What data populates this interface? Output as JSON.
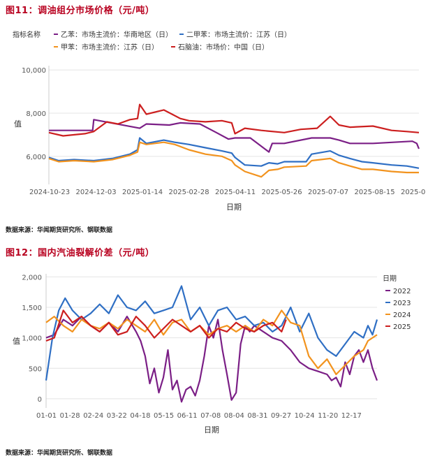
{
  "figures": [
    {
      "title": "图11：调油组分市场价格（元/吨）",
      "source": "数据来源：华闻期货研究所、钢联数据"
    },
    {
      "title": "图12：国内汽油裂解价差（元/吨）",
      "source": "数据来源：华闻期货研究所、钢联数据"
    }
  ],
  "chart_data": [
    {
      "type": "line",
      "xlabel": "日期",
      "ylabel": "值",
      "legend_title": "指标名称",
      "legend_position": "top",
      "x_ticks": [
        "2024-10-23",
        "2024-12-03",
        "2025-01-14",
        "2025-02-28",
        "2025-04-11",
        "2025-05-26",
        "2025-07-07",
        "2025-08-15",
        "2025-0"
      ],
      "y_ticks": [
        "6,000",
        "8,000",
        "10,000"
      ],
      "ylim": [
        4700,
        10200
      ],
      "grid": "horizontal",
      "x_date_range": [
        "2024-10-23",
        "2025-09-26"
      ],
      "series": [
        {
          "name": "乙苯：市场主流价：华南地区（日）",
          "color": "#7b1f86",
          "x": [
            "2024-10-23",
            "2024-12-02",
            "2024-12-03",
            "2025-01-14",
            "2025-01-20",
            "2025-02-10",
            "2025-02-20",
            "2025-03-10",
            "2025-03-25",
            "2025-04-05",
            "2025-04-11",
            "2025-04-25",
            "2025-05-12",
            "2025-05-15",
            "2025-05-26",
            "2025-06-20",
            "2025-07-07",
            "2025-07-15",
            "2025-07-25",
            "2025-08-15",
            "2025-09-20",
            "2025-09-24",
            "2025-09-26"
          ],
          "y": [
            7200,
            7200,
            7700,
            7300,
            7500,
            7450,
            7550,
            7500,
            7100,
            6800,
            6850,
            6850,
            6200,
            6600,
            6600,
            6850,
            6850,
            6750,
            6600,
            6600,
            6700,
            6600,
            6350
          ]
        },
        {
          "name": "二甲苯：市场主流价：江苏（日）",
          "color": "#2f6fc4",
          "x": [
            "2024-10-23",
            "2024-11-01",
            "2024-11-15",
            "2024-12-03",
            "2024-12-20",
            "2025-01-05",
            "2025-01-12",
            "2025-01-14",
            "2025-01-20",
            "2025-02-05",
            "2025-02-15",
            "2025-02-28",
            "2025-03-15",
            "2025-03-30",
            "2025-04-08",
            "2025-04-11",
            "2025-04-20",
            "2025-05-05",
            "2025-05-12",
            "2025-05-20",
            "2025-05-26",
            "2025-06-15",
            "2025-06-20",
            "2025-07-07",
            "2025-07-15",
            "2025-07-25",
            "2025-08-05",
            "2025-08-15",
            "2025-09-01",
            "2025-09-15",
            "2025-09-26"
          ],
          "y": [
            5950,
            5800,
            5850,
            5800,
            5900,
            6100,
            6300,
            6850,
            6600,
            6750,
            6650,
            6550,
            6400,
            6250,
            6150,
            5950,
            5600,
            5550,
            5700,
            5650,
            5750,
            5750,
            6100,
            6250,
            6050,
            5900,
            5750,
            5700,
            5600,
            5550,
            5450
          ]
        },
        {
          "name": "甲苯：市场主流价：江苏（日）",
          "color": "#f2931e",
          "x": [
            "2024-10-23",
            "2024-11-01",
            "2024-11-15",
            "2024-12-03",
            "2024-12-20",
            "2025-01-05",
            "2025-01-12",
            "2025-01-14",
            "2025-01-20",
            "2025-02-05",
            "2025-02-15",
            "2025-02-28",
            "2025-03-15",
            "2025-03-30",
            "2025-04-08",
            "2025-04-11",
            "2025-04-20",
            "2025-05-05",
            "2025-05-12",
            "2025-05-20",
            "2025-05-26",
            "2025-06-15",
            "2025-06-20",
            "2025-07-07",
            "2025-07-15",
            "2025-07-25",
            "2025-08-05",
            "2025-08-15",
            "2025-09-01",
            "2025-09-15",
            "2025-09-26"
          ],
          "y": [
            5900,
            5750,
            5800,
            5750,
            5850,
            6050,
            6200,
            6650,
            6550,
            6650,
            6550,
            6300,
            6100,
            6000,
            5800,
            5600,
            5300,
            5050,
            5350,
            5400,
            5500,
            5550,
            5800,
            5900,
            5700,
            5550,
            5400,
            5400,
            5300,
            5250,
            5250
          ]
        },
        {
          "name": "石脑油：市场价：中国（日）",
          "color": "#cc1f1f",
          "x": [
            "2024-10-23",
            "2024-11-05",
            "2024-11-25",
            "2024-12-03",
            "2024-12-15",
            "2024-12-25",
            "2025-01-05",
            "2025-01-12",
            "2025-01-14",
            "2025-01-20",
            "2025-02-05",
            "2025-02-20",
            "2025-02-28",
            "2025-03-15",
            "2025-03-30",
            "2025-04-08",
            "2025-04-11",
            "2025-04-20",
            "2025-05-05",
            "2025-05-26",
            "2025-06-10",
            "2025-06-25",
            "2025-07-07",
            "2025-07-15",
            "2025-07-25",
            "2025-08-15",
            "2025-09-01",
            "2025-09-15",
            "2025-09-26"
          ],
          "y": [
            7100,
            6950,
            7050,
            7150,
            7600,
            7500,
            7700,
            7750,
            8400,
            7950,
            8150,
            7750,
            7650,
            7600,
            7650,
            7550,
            7050,
            7300,
            7200,
            7100,
            7250,
            7300,
            7850,
            7450,
            7350,
            7400,
            7200,
            7150,
            7100
          ]
        }
      ]
    },
    {
      "type": "line",
      "xlabel": "日期",
      "ylabel": "值",
      "legend_title": "日期",
      "legend_position": "right",
      "x_ticks": [
        "01-01",
        "01-28",
        "02-24",
        "03-22",
        "04-18",
        "05-15",
        "06-11",
        "07-08",
        "08-04",
        "08-31",
        "09-27",
        "10-24",
        "11-20",
        "12-17"
      ],
      "y_ticks": [
        "0",
        "500",
        "1,000",
        "1,500",
        "2,000"
      ],
      "ylim": [
        -150,
        2050
      ],
      "grid": "horizontal",
      "series": [
        {
          "name": "2022",
          "color": "#7b1f86",
          "x": [
            1,
            10,
            20,
            30,
            40,
            50,
            60,
            70,
            80,
            90,
            100,
            105,
            110,
            115,
            120,
            125,
            130,
            135,
            140,
            145,
            150,
            155,
            160,
            165,
            170,
            175,
            180,
            185,
            190,
            195,
            200,
            205,
            210,
            215,
            220,
            225,
            230,
            240,
            250,
            260,
            270,
            280,
            290,
            300,
            310,
            315,
            320,
            325,
            330,
            335,
            340,
            345,
            350,
            355,
            360,
            365
          ],
          "y": [
            1000,
            1050,
            1300,
            1200,
            1350,
            1200,
            1100,
            1250,
            1100,
            1350,
            1100,
            950,
            700,
            250,
            500,
            100,
            350,
            800,
            150,
            300,
            -50,
            150,
            200,
            50,
            300,
            700,
            1200,
            1000,
            1300,
            800,
            400,
            -20,
            100,
            900,
            1200,
            1100,
            1200,
            1100,
            1000,
            950,
            800,
            600,
            500,
            450,
            400,
            300,
            350,
            200,
            600,
            400,
            700,
            800,
            600,
            800,
            500,
            300
          ]
        },
        {
          "name": "2023",
          "color": "#2f6fc4",
          "x": [
            1,
            8,
            15,
            22,
            30,
            40,
            50,
            60,
            70,
            80,
            90,
            100,
            110,
            120,
            130,
            140,
            150,
            160,
            170,
            180,
            190,
            200,
            210,
            220,
            230,
            240,
            250,
            260,
            270,
            280,
            290,
            300,
            310,
            320,
            330,
            340,
            350,
            355,
            360,
            365
          ],
          "y": [
            300,
            1000,
            1450,
            1650,
            1450,
            1300,
            1400,
            1550,
            1400,
            1700,
            1500,
            1450,
            1600,
            1400,
            1450,
            1500,
            1850,
            1300,
            1500,
            1200,
            1450,
            1500,
            1300,
            1350,
            1200,
            1250,
            1100,
            1200,
            1500,
            1100,
            1400,
            1000,
            800,
            700,
            900,
            1100,
            1000,
            1200,
            1050,
            1300
          ]
        },
        {
          "name": "2024",
          "color": "#f2931e",
          "x": [
            1,
            10,
            20,
            30,
            40,
            50,
            60,
            70,
            80,
            90,
            100,
            110,
            120,
            130,
            140,
            150,
            160,
            170,
            180,
            190,
            200,
            210,
            220,
            230,
            240,
            250,
            260,
            270,
            280,
            290,
            300,
            310,
            320,
            330,
            340,
            350,
            355,
            360,
            365
          ],
          "y": [
            1250,
            1350,
            1200,
            1100,
            1300,
            1200,
            1150,
            1250,
            1150,
            1300,
            1200,
            1100,
            1300,
            1050,
            1250,
            1300,
            1100,
            1200,
            1050,
            1150,
            1200,
            1100,
            1200,
            1100,
            1300,
            1200,
            1450,
            1250,
            1200,
            700,
            500,
            650,
            400,
            550,
            700,
            800,
            950,
            1000,
            1050
          ]
        },
        {
          "name": "2025",
          "color": "#cc1f1f",
          "x": [
            1,
            10,
            20,
            30,
            40,
            50,
            60,
            70,
            80,
            90,
            100,
            110,
            120,
            130,
            140,
            150,
            160,
            170,
            180,
            190,
            200,
            210,
            220,
            230,
            240,
            250,
            260,
            265
          ],
          "y": [
            950,
            1000,
            1450,
            1250,
            1350,
            1200,
            1100,
            1250,
            1050,
            1100,
            1350,
            1200,
            1000,
            1150,
            1300,
            1200,
            1100,
            1200,
            1000,
            1150,
            1100,
            1250,
            1150,
            1100,
            1200,
            1250,
            1100,
            1300
          ]
        }
      ]
    }
  ]
}
